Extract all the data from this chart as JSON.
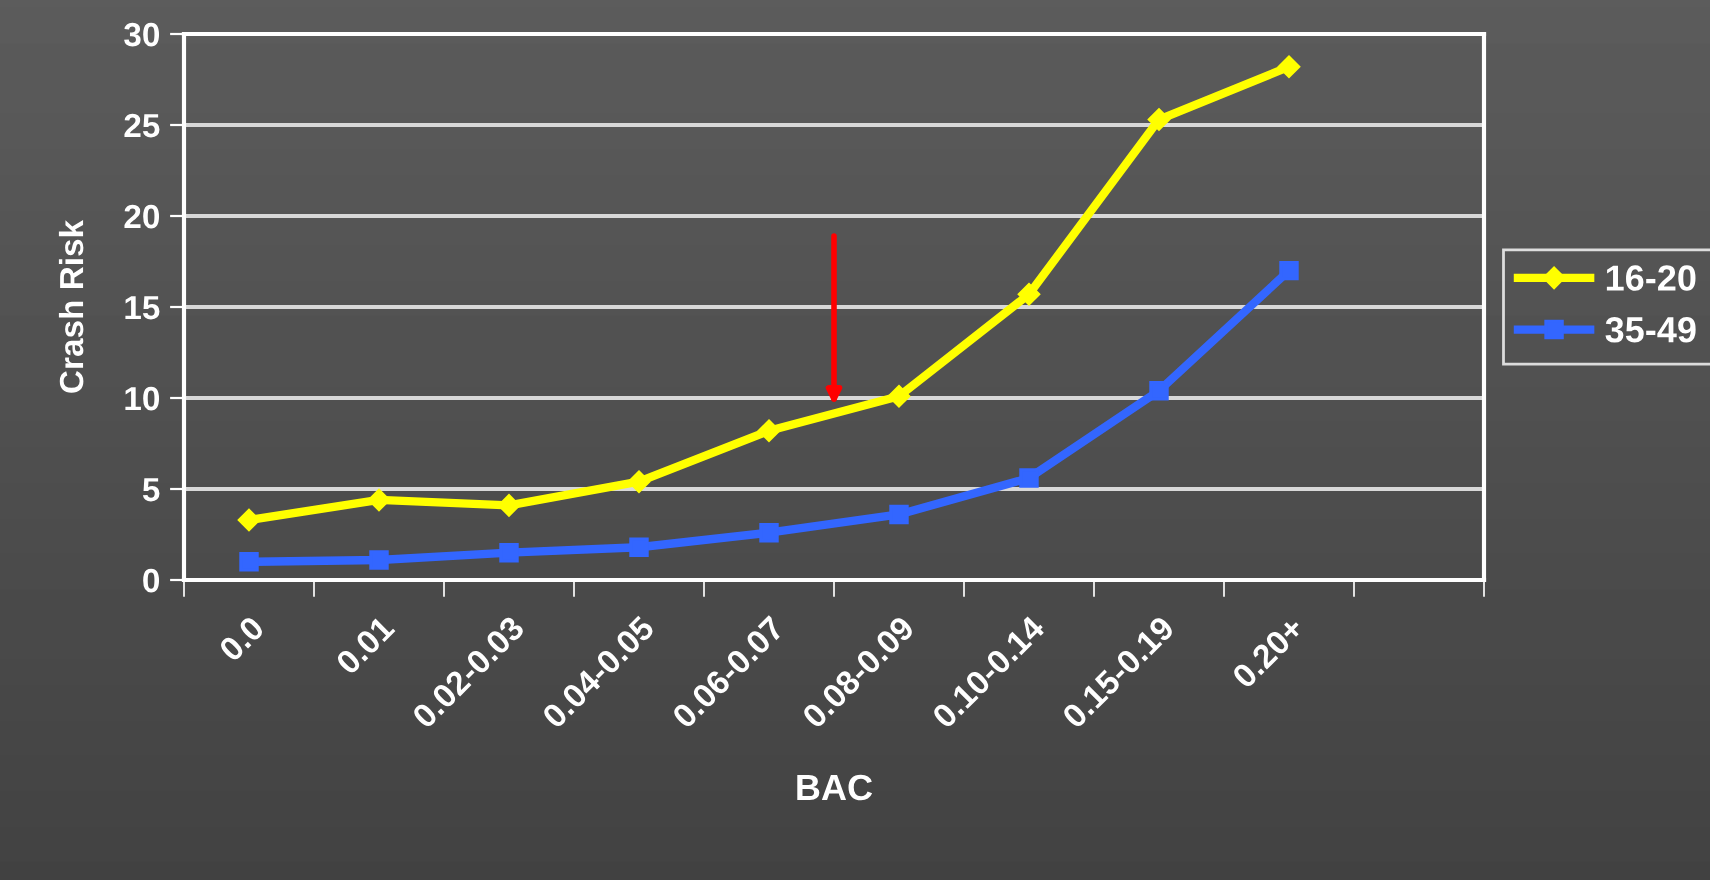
{
  "chart_data": {
    "type": "line",
    "xlabel": "BAC",
    "ylabel": "Crash Risk",
    "categories": [
      "0.0",
      "0.01",
      "0.02-0.03",
      "0.04-0.05",
      "0.06-0.07",
      "0.08-0.09",
      "0.10-0.14",
      "0.15-0.19",
      "0.20+"
    ],
    "series": [
      {
        "name": "16-20",
        "color": "#ffff00",
        "marker": "diamond",
        "values": [
          3.3,
          4.4,
          4.1,
          5.4,
          8.2,
          10.1,
          15.7,
          25.3,
          28.2
        ]
      },
      {
        "name": "35-49",
        "color": "#3366ff",
        "marker": "square",
        "values": [
          1.0,
          1.1,
          1.5,
          1.8,
          2.6,
          3.6,
          5.6,
          10.4,
          17.0
        ]
      }
    ],
    "ylim": [
      0,
      30
    ],
    "yticks": [
      0,
      5,
      10,
      15,
      20,
      25,
      30
    ],
    "grid": "y",
    "legend": "right",
    "line_style": "solid"
  }
}
